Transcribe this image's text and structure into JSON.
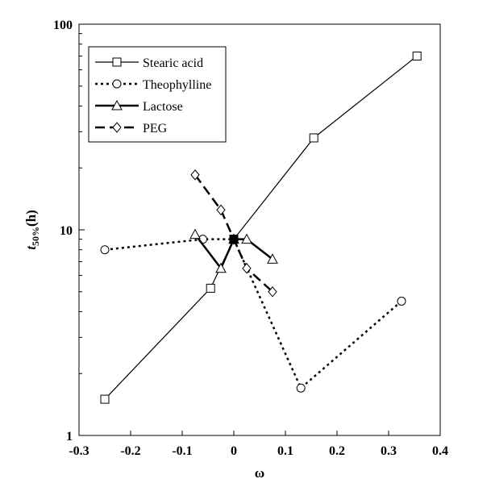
{
  "chart_data": {
    "type": "line",
    "xlabel": "ω",
    "ylabel_main": "t",
    "ylabel_sub": "50%",
    "ylabel_unit": "(h)",
    "xlim": [
      -0.3,
      0.4
    ],
    "ylim": [
      1,
      100
    ],
    "yscale": "log",
    "x_ticks": [
      "-0.3",
      "-0.2",
      "-0.1",
      "0",
      "0.1",
      "0.2",
      "0.3",
      "0.4"
    ],
    "x_tick_values": [
      -0.3,
      -0.2,
      -0.1,
      0,
      0.1,
      0.2,
      0.3,
      0.4
    ],
    "y_ticks": [
      "1",
      "10",
      "100"
    ],
    "y_tick_values": [
      1,
      10,
      100
    ],
    "grid": false,
    "legend_position": "top-left",
    "series": [
      {
        "name": "Stearic acid",
        "marker": "square",
        "line": "solid-thin",
        "points": [
          [
            -0.25,
            1.5
          ],
          [
            -0.045,
            5.2
          ],
          [
            0.0,
            9.0
          ],
          [
            0.155,
            28.0
          ],
          [
            0.355,
            70.0
          ]
        ]
      },
      {
        "name": "Theophylline",
        "marker": "circle",
        "line": "dotted-thick",
        "points": [
          [
            -0.25,
            8.0
          ],
          [
            -0.06,
            9.0
          ],
          [
            0.0,
            9.0
          ],
          [
            0.13,
            1.7
          ],
          [
            0.325,
            4.5
          ]
        ]
      },
      {
        "name": "Lactose",
        "marker": "triangle",
        "line": "solid-thick",
        "points": [
          [
            -0.075,
            9.5
          ],
          [
            -0.025,
            6.5
          ],
          [
            0.0,
            9.0
          ],
          [
            0.025,
            9.0
          ],
          [
            0.075,
            7.2
          ]
        ]
      },
      {
        "name": "PEG",
        "marker": "diamond",
        "line": "dashed-thick",
        "points": [
          [
            -0.075,
            18.5
          ],
          [
            -0.025,
            12.5
          ],
          [
            0.0,
            9.0
          ],
          [
            0.025,
            6.5
          ],
          [
            0.075,
            5.0
          ]
        ]
      }
    ]
  }
}
